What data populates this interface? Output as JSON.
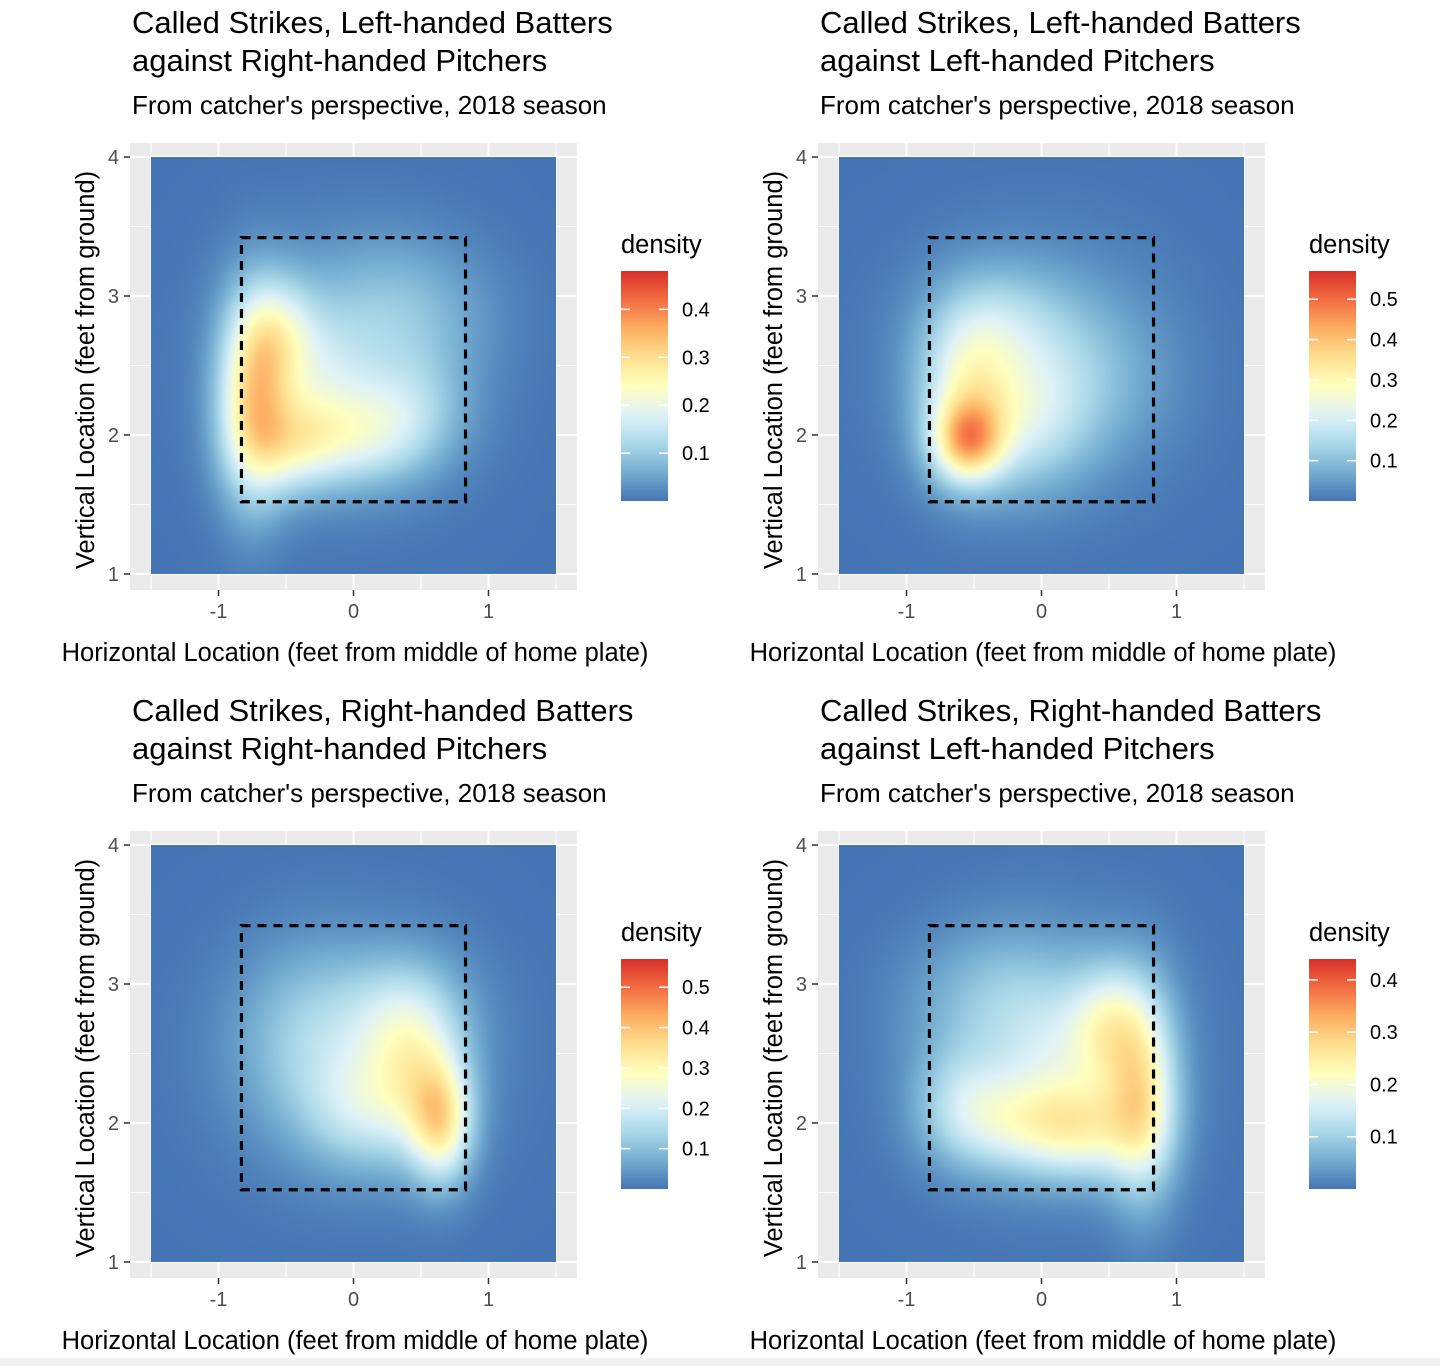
{
  "colors": {
    "panel_background": "#ebebeb",
    "grid_line": "#ffffff",
    "axis_text": "#4d4d4d",
    "zone_line": "#000000",
    "scale_low": "#4575b4",
    "scale_mid": "#ffffbf",
    "scale_high": "#d73027"
  },
  "chart_data": [
    {
      "type": "heatmap",
      "title_lines": [
        "Called Strikes, Left-handed Batters",
        "against Right-handed Pitchers"
      ],
      "subtitle": "From catcher's perspective, 2018 season",
      "xlabel": "Horizontal Location (feet from middle of home plate)",
      "ylabel": "Vertical Location (feet from ground)",
      "xlim": [
        -1.5,
        1.5
      ],
      "ylim": [
        1,
        4
      ],
      "x_ticks": [
        -1,
        0,
        1
      ],
      "x_tick_labels": [
        "-1",
        "0",
        "1"
      ],
      "y_ticks": [
        1,
        2,
        3,
        4
      ],
      "y_tick_labels": [
        "1",
        "2",
        "3",
        "4"
      ],
      "strike_zone": {
        "x": [
          -0.83,
          0.83
        ],
        "y": [
          1.52,
          3.42
        ]
      },
      "legend": {
        "title": "density",
        "position": "right",
        "min": 0,
        "max": 0.48,
        "ticks": [
          0.1,
          0.2,
          0.3,
          0.4
        ],
        "tick_labels": [
          "0.1",
          "0.2",
          "0.3",
          "0.4"
        ]
      },
      "density_blobs": [
        {
          "x": -0.75,
          "y": 2.25,
          "sx": 0.18,
          "sy": 0.5,
          "w": 0.24
        },
        {
          "x": -0.55,
          "y": 2.7,
          "sx": 0.2,
          "sy": 0.3,
          "w": 0.14
        },
        {
          "x": -0.45,
          "y": 1.95,
          "sx": 0.25,
          "sy": 0.25,
          "w": 0.16
        },
        {
          "x": 0.05,
          "y": 2.0,
          "sx": 0.32,
          "sy": 0.25,
          "w": 0.13
        },
        {
          "x": 0.45,
          "y": 2.2,
          "sx": 0.28,
          "sy": 0.3,
          "w": 0.07
        },
        {
          "x": -0.2,
          "y": 2.45,
          "sx": 0.25,
          "sy": 0.3,
          "w": 0.06
        },
        {
          "x": 0.35,
          "y": 2.9,
          "sx": 0.45,
          "sy": 0.35,
          "w": 0.06
        },
        {
          "x": -0.05,
          "y": 2.5,
          "sx": 0.6,
          "sy": 0.6,
          "w": 0.06
        }
      ]
    },
    {
      "type": "heatmap",
      "title_lines": [
        "Called Strikes, Left-handed Batters",
        "against Left-handed Pitchers"
      ],
      "subtitle": "From catcher's perspective, 2018 season",
      "xlabel": "Horizontal Location (feet from middle of home plate)",
      "ylabel": "Vertical Location (feet from ground)",
      "xlim": [
        -1.5,
        1.5
      ],
      "ylim": [
        1,
        4
      ],
      "x_ticks": [
        -1,
        0,
        1
      ],
      "x_tick_labels": [
        "-1",
        "0",
        "1"
      ],
      "y_ticks": [
        1,
        2,
        3,
        4
      ],
      "y_tick_labels": [
        "1",
        "2",
        "3",
        "4"
      ],
      "strike_zone": {
        "x": [
          -0.83,
          0.83
        ],
        "y": [
          1.52,
          3.42
        ]
      },
      "legend": {
        "title": "density",
        "position": "right",
        "min": 0,
        "max": 0.57,
        "ticks": [
          0.1,
          0.2,
          0.3,
          0.4,
          0.5
        ],
        "tick_labels": [
          "0.1",
          "0.2",
          "0.3",
          "0.4",
          "0.5"
        ]
      },
      "density_blobs": [
        {
          "x": -0.55,
          "y": 1.95,
          "sx": 0.18,
          "sy": 0.2,
          "w": 0.28
        },
        {
          "x": -0.55,
          "y": 2.3,
          "sx": 0.25,
          "sy": 0.4,
          "w": 0.2
        },
        {
          "x": -0.1,
          "y": 2.1,
          "sx": 0.3,
          "sy": 0.35,
          "w": 0.12
        },
        {
          "x": -0.3,
          "y": 2.8,
          "sx": 0.35,
          "sy": 0.3,
          "w": 0.09
        },
        {
          "x": 0.3,
          "y": 2.4,
          "sx": 0.4,
          "sy": 0.4,
          "w": 0.06
        },
        {
          "x": 0.0,
          "y": 2.5,
          "sx": 0.65,
          "sy": 0.6,
          "w": 0.06
        }
      ]
    },
    {
      "type": "heatmap",
      "title_lines": [
        "Called Strikes, Right-handed Batters",
        "against Right-handed Pitchers"
      ],
      "subtitle": "From catcher's perspective, 2018 season",
      "xlabel": "Horizontal Location (feet from middle of home plate)",
      "ylabel": "Vertical Location (feet from ground)",
      "xlim": [
        -1.5,
        1.5
      ],
      "ylim": [
        1,
        4
      ],
      "x_ticks": [
        -1,
        0,
        1
      ],
      "x_tick_labels": [
        "-1",
        "0",
        "1"
      ],
      "y_ticks": [
        1,
        2,
        3,
        4
      ],
      "y_tick_labels": [
        "1",
        "2",
        "3",
        "4"
      ],
      "strike_zone": {
        "x": [
          -0.83,
          0.83
        ],
        "y": [
          1.52,
          3.42
        ]
      },
      "legend": {
        "title": "density",
        "position": "right",
        "min": 0,
        "max": 0.57,
        "ticks": [
          0.1,
          0.2,
          0.3,
          0.4,
          0.5
        ],
        "tick_labels": [
          "0.1",
          "0.2",
          "0.3",
          "0.4",
          "0.5"
        ]
      },
      "density_blobs": [
        {
          "x": 0.65,
          "y": 2.0,
          "sx": 0.16,
          "sy": 0.3,
          "w": 0.26
        },
        {
          "x": 0.45,
          "y": 2.4,
          "sx": 0.25,
          "sy": 0.4,
          "w": 0.18
        },
        {
          "x": 0.05,
          "y": 2.1,
          "sx": 0.3,
          "sy": 0.3,
          "w": 0.12
        },
        {
          "x": 0.3,
          "y": 2.8,
          "sx": 0.35,
          "sy": 0.3,
          "w": 0.08
        },
        {
          "x": -0.35,
          "y": 2.6,
          "sx": 0.35,
          "sy": 0.45,
          "w": 0.08
        },
        {
          "x": 0.0,
          "y": 2.5,
          "sx": 0.65,
          "sy": 0.6,
          "w": 0.06
        }
      ]
    },
    {
      "type": "heatmap",
      "title_lines": [
        "Called Strikes, Right-handed Batters",
        "against Left-handed Pitchers"
      ],
      "subtitle": "From catcher's perspective, 2018 season",
      "xlabel": "Horizontal Location (feet from middle of home plate)",
      "ylabel": "Vertical Location (feet from ground)",
      "xlim": [
        -1.5,
        1.5
      ],
      "ylim": [
        1,
        4
      ],
      "x_ticks": [
        -1,
        0,
        1
      ],
      "x_tick_labels": [
        "-1",
        "0",
        "1"
      ],
      "y_ticks": [
        1,
        2,
        3,
        4
      ],
      "y_tick_labels": [
        "1",
        "2",
        "3",
        "4"
      ],
      "strike_zone": {
        "x": [
          -0.83,
          0.83
        ],
        "y": [
          1.52,
          3.42
        ]
      },
      "legend": {
        "title": "density",
        "position": "right",
        "min": 0,
        "max": 0.44,
        "ticks": [
          0.1,
          0.2,
          0.3,
          0.4
        ],
        "tick_labels": [
          "0.1",
          "0.2",
          "0.3",
          "0.4"
        ]
      },
      "density_blobs": [
        {
          "x": 0.75,
          "y": 2.2,
          "sx": 0.18,
          "sy": 0.5,
          "w": 0.2
        },
        {
          "x": 0.5,
          "y": 2.7,
          "sx": 0.2,
          "sy": 0.3,
          "w": 0.13
        },
        {
          "x": 0.35,
          "y": 1.95,
          "sx": 0.3,
          "sy": 0.25,
          "w": 0.14
        },
        {
          "x": -0.15,
          "y": 2.0,
          "sx": 0.35,
          "sy": 0.25,
          "w": 0.13
        },
        {
          "x": -0.6,
          "y": 2.15,
          "sx": 0.25,
          "sy": 0.3,
          "w": 0.08
        },
        {
          "x": 0.15,
          "y": 2.5,
          "sx": 0.3,
          "sy": 0.3,
          "w": 0.06
        },
        {
          "x": -0.3,
          "y": 2.9,
          "sx": 0.45,
          "sy": 0.35,
          "w": 0.06
        },
        {
          "x": 0.05,
          "y": 2.5,
          "sx": 0.6,
          "sy": 0.6,
          "w": 0.06
        }
      ]
    }
  ]
}
